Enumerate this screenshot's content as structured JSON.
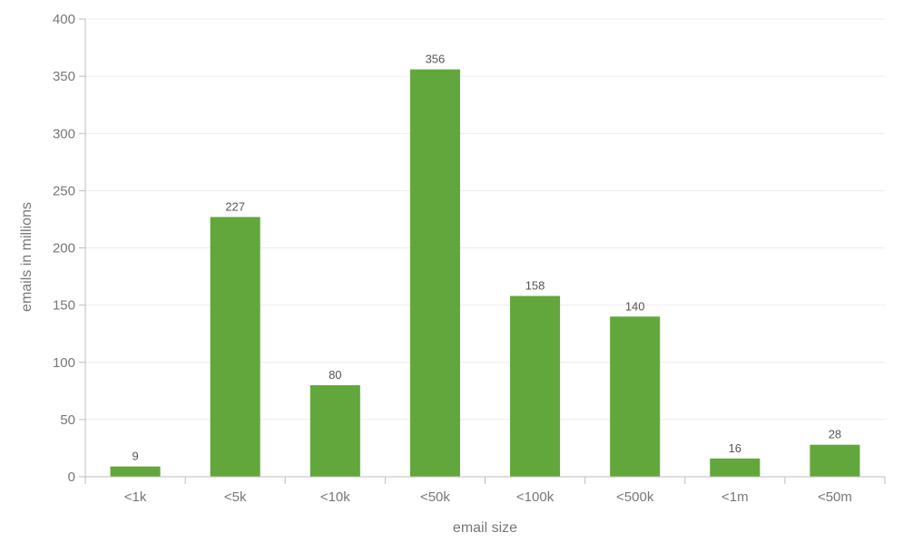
{
  "chart_data": {
    "type": "bar",
    "categories": [
      "<1k",
      "<5k",
      "<10k",
      "<50k",
      "<100k",
      "<500k",
      "<1m",
      "<50m"
    ],
    "values": [
      9,
      227,
      80,
      356,
      158,
      140,
      16,
      28
    ],
    "title": "",
    "xlabel": "email size",
    "ylabel": "emails in millions",
    "ylim": [
      0,
      400
    ],
    "yticks": [
      0,
      50,
      100,
      150,
      200,
      250,
      300,
      350,
      400
    ],
    "grid": true,
    "legend": "none",
    "colors": {
      "bar": "#62a73b",
      "grid": "#ececec",
      "axis": "#bdbdbd",
      "tick_text": "#777777",
      "label_text": "#555555"
    }
  }
}
